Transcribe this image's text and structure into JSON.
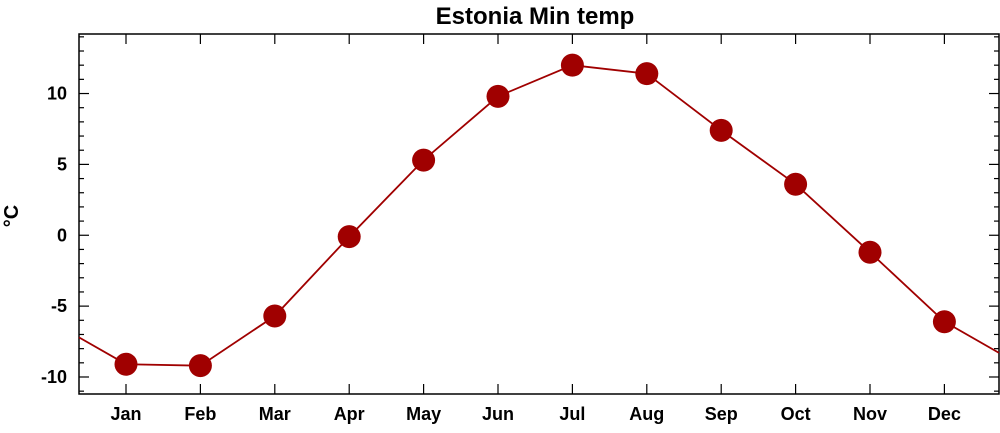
{
  "chart_data": {
    "type": "line",
    "title": "Estonia Min temp",
    "xlabel": "",
    "ylabel": "°C",
    "categories": [
      "Jan",
      "Feb",
      "Mar",
      "Apr",
      "May",
      "Jun",
      "Jul",
      "Aug",
      "Sep",
      "Oct",
      "Nov",
      "Dec"
    ],
    "series": [
      {
        "values": [
          -9.1,
          -9.2,
          -5.7,
          -0.1,
          5.3,
          9.8,
          12.0,
          11.4,
          7.4,
          3.6,
          -1.2,
          -6.1
        ]
      }
    ],
    "ylim": [
      -11.2,
      14.2
    ],
    "yticks": [
      -10,
      -5,
      0,
      5,
      10
    ],
    "ytick_labels": [
      "-10",
      "-5",
      "0",
      "5",
      "10"
    ],
    "grid": false,
    "colors": {
      "line": "#a00000",
      "marker": "#a00000",
      "axes": "#000000"
    }
  }
}
